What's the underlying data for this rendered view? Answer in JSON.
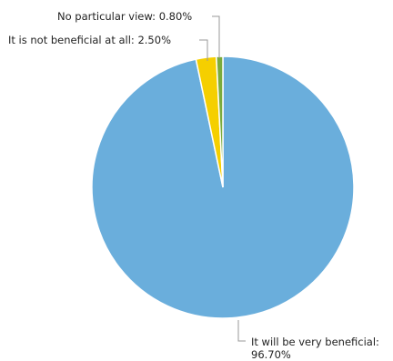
{
  "chart_data": {
    "type": "pie",
    "title": "",
    "slices": [
      {
        "label": "It will be very beneficial",
        "value": 96.7,
        "display": "96.70%",
        "color": "#6aaedc"
      },
      {
        "label": "It is not beneficial at all",
        "value": 2.5,
        "display": "2.50%",
        "color": "#f5cf00"
      },
      {
        "label": "No particular view",
        "value": 0.8,
        "display": "0.80%",
        "color": "#7aab3c"
      }
    ],
    "labels": {
      "very_beneficial_line1": "It will be very beneficial:",
      "very_beneficial_line2": "96.70%",
      "not_beneficial": "It is not beneficial at all: 2.50%",
      "no_view": "No particular view: 0.80%"
    },
    "start_angle": "12 o'clock",
    "direction": "counterclockwise",
    "legend": "none"
  }
}
